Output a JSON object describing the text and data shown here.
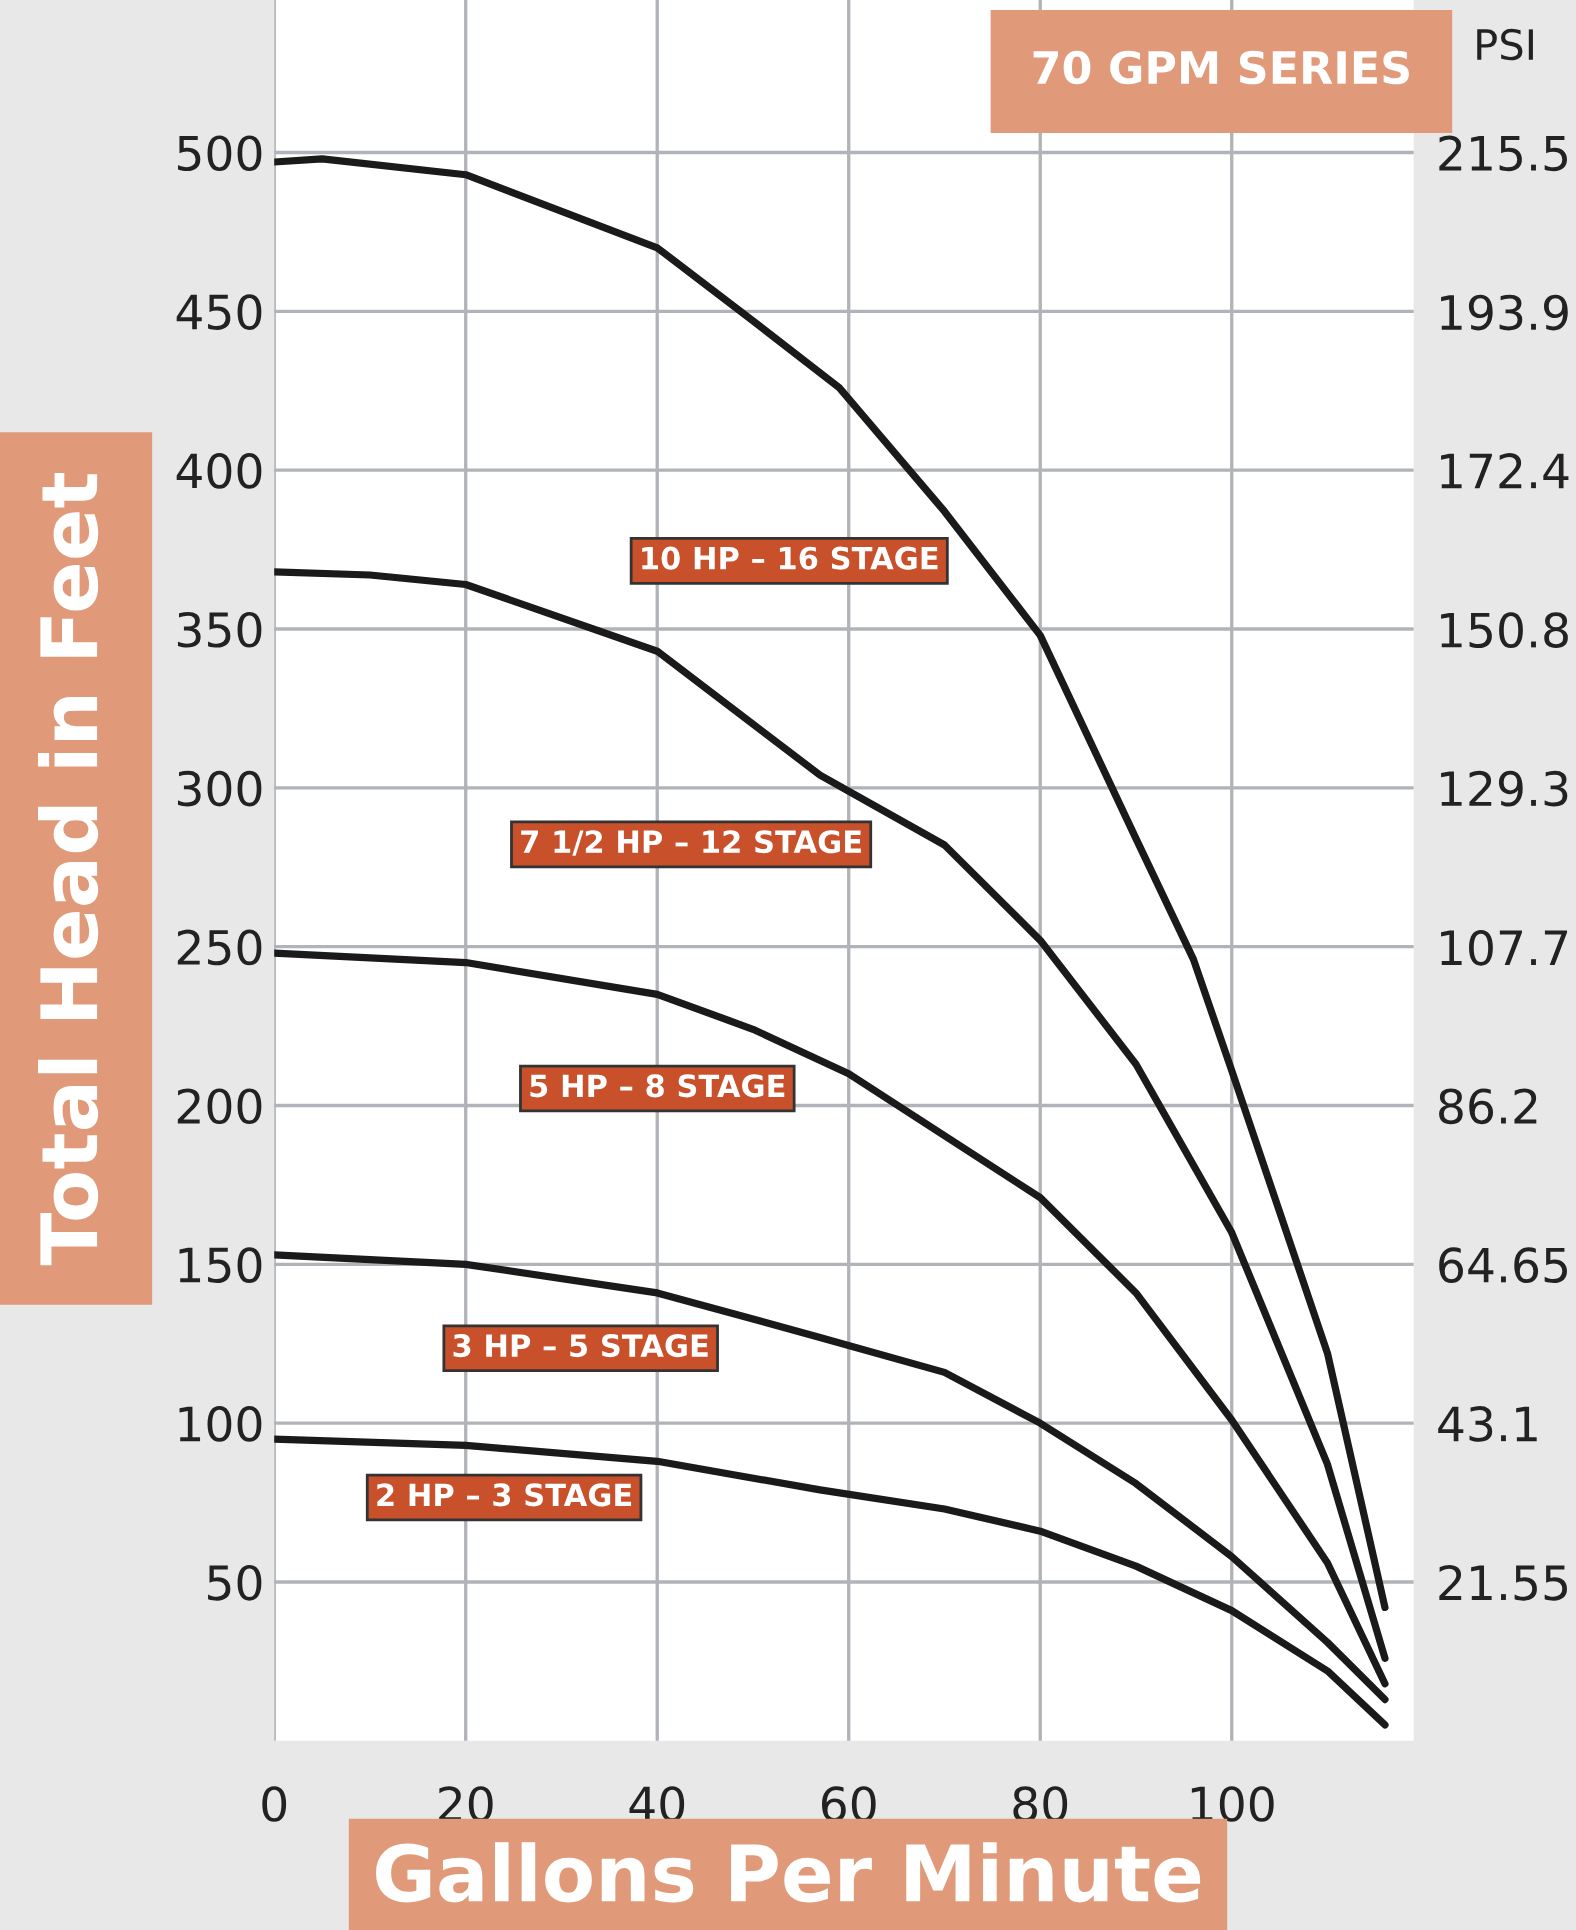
{
  "chart_data": {
    "type": "line",
    "title": "70 GPM SERIES",
    "xlabel": "Gallons Per Minute",
    "ylabel": "Total Head in Feet",
    "y2label": "PSI",
    "xlim": [
      0,
      119
    ],
    "xticks": [
      0,
      20,
      40,
      60,
      80,
      100
    ],
    "ylim": [
      0,
      548
    ],
    "yticks": [
      50,
      100,
      150,
      200,
      250,
      300,
      350,
      400,
      450,
      500
    ],
    "y2lim": [
      0,
      236.2
    ],
    "y2ticks": [
      21.55,
      43.1,
      64.65,
      86.2,
      107.7,
      129.3,
      150.8,
      172.4,
      193.9,
      215.5
    ],
    "grid": true,
    "marker": "none",
    "line_style": "solid",
    "series": [
      {
        "name": "10 HP – 16 STAGE",
        "color": "#1a1a1a",
        "x": [
          0,
          5,
          20,
          40,
          50,
          59,
          70,
          80,
          90,
          96,
          100,
          110,
          116
        ],
        "values": [
          497,
          498,
          493,
          470,
          447,
          426,
          387,
          348,
          284,
          246,
          211,
          122,
          42
        ]
      },
      {
        "name": "7 1/2 HP – 12 STAGE",
        "color": "#1a1a1a",
        "x": [
          0,
          10,
          20,
          40,
          57,
          70,
          80,
          90,
          100,
          110,
          116
        ],
        "values": [
          368,
          367,
          364,
          343,
          304,
          282,
          252,
          213,
          160,
          87,
          26
        ]
      },
      {
        "name": "5 HP – 8 STAGE",
        "color": "#1a1a1a",
        "x": [
          0,
          20,
          40,
          50,
          60,
          80,
          90,
          100,
          110,
          116
        ],
        "values": [
          248,
          245,
          235,
          224,
          210,
          171,
          141,
          101,
          56,
          18
        ]
      },
      {
        "name": "3 HP – 5 STAGE",
        "color": "#1a1a1a",
        "x": [
          0,
          20,
          40,
          57,
          70,
          80,
          90,
          100,
          110,
          116
        ],
        "values": [
          153,
          150,
          141,
          127,
          116,
          100,
          81,
          58,
          31,
          13
        ]
      },
      {
        "name": "2 HP – 3 STAGE",
        "color": "#1a1a1a",
        "x": [
          0,
          20,
          40,
          57,
          70,
          80,
          90,
          100,
          110,
          116
        ],
        "values": [
          95,
          93,
          88,
          79,
          73,
          66,
          55,
          41,
          22,
          5
        ]
      }
    ]
  }
}
